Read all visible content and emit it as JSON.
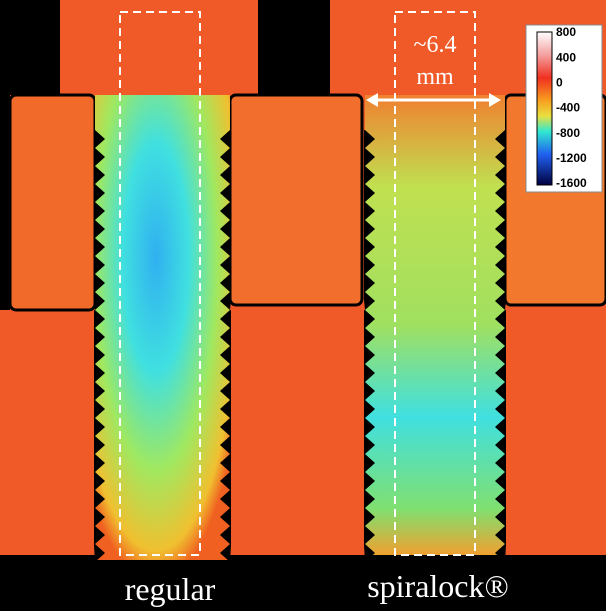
{
  "annotations": {
    "width_value": "~6.4",
    "width_unit": "mm"
  },
  "labels": {
    "left": "regular",
    "right": "spiralock®"
  },
  "colorbar": {
    "ticks": [
      800,
      400,
      0,
      -400,
      -800,
      -1200,
      -1600
    ]
  }
}
